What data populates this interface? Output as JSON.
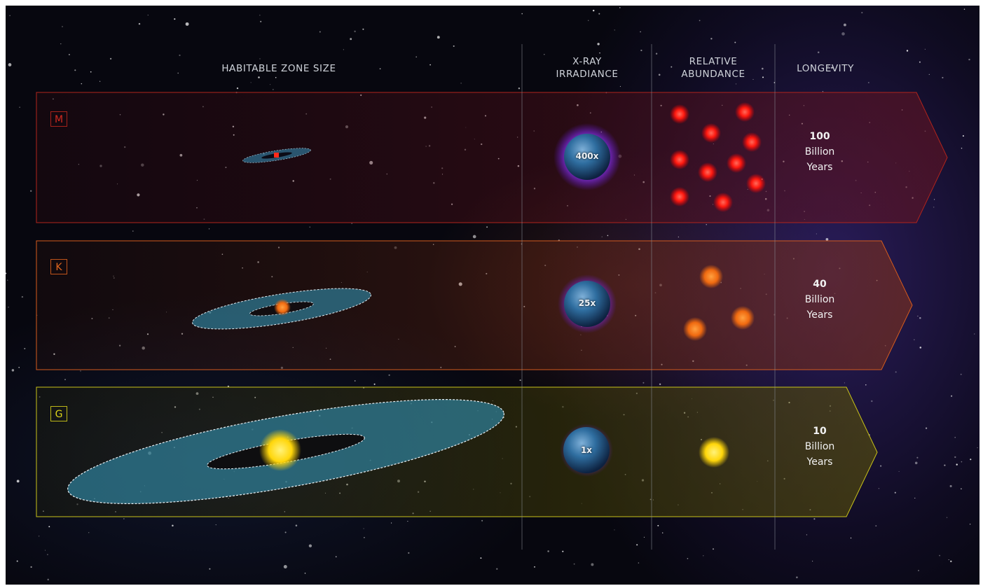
{
  "headers": {
    "habitable": "HABITABLE ZONE SIZE",
    "xray": "X-RAY\nIRRADIANCE",
    "abundance": "RELATIVE\nABUNDANCE",
    "longevity": "LONGEVITY"
  },
  "rows": [
    {
      "class": "M",
      "color": "#c0261c",
      "xray": "400x",
      "longevity_value": "100",
      "longevity_unit": "Billion",
      "longevity_suffix": "Years",
      "star_count": 11
    },
    {
      "class": "K",
      "color": "#e0661f",
      "xray": "25x",
      "longevity_value": "40",
      "longevity_unit": "Billion",
      "longevity_suffix": "Years",
      "star_count": 4
    },
    {
      "class": "G",
      "color": "#d9d21a",
      "xray": "1x",
      "longevity_value": "10",
      "longevity_unit": "Billion",
      "longevity_suffix": "Years",
      "star_count": 1
    }
  ]
}
